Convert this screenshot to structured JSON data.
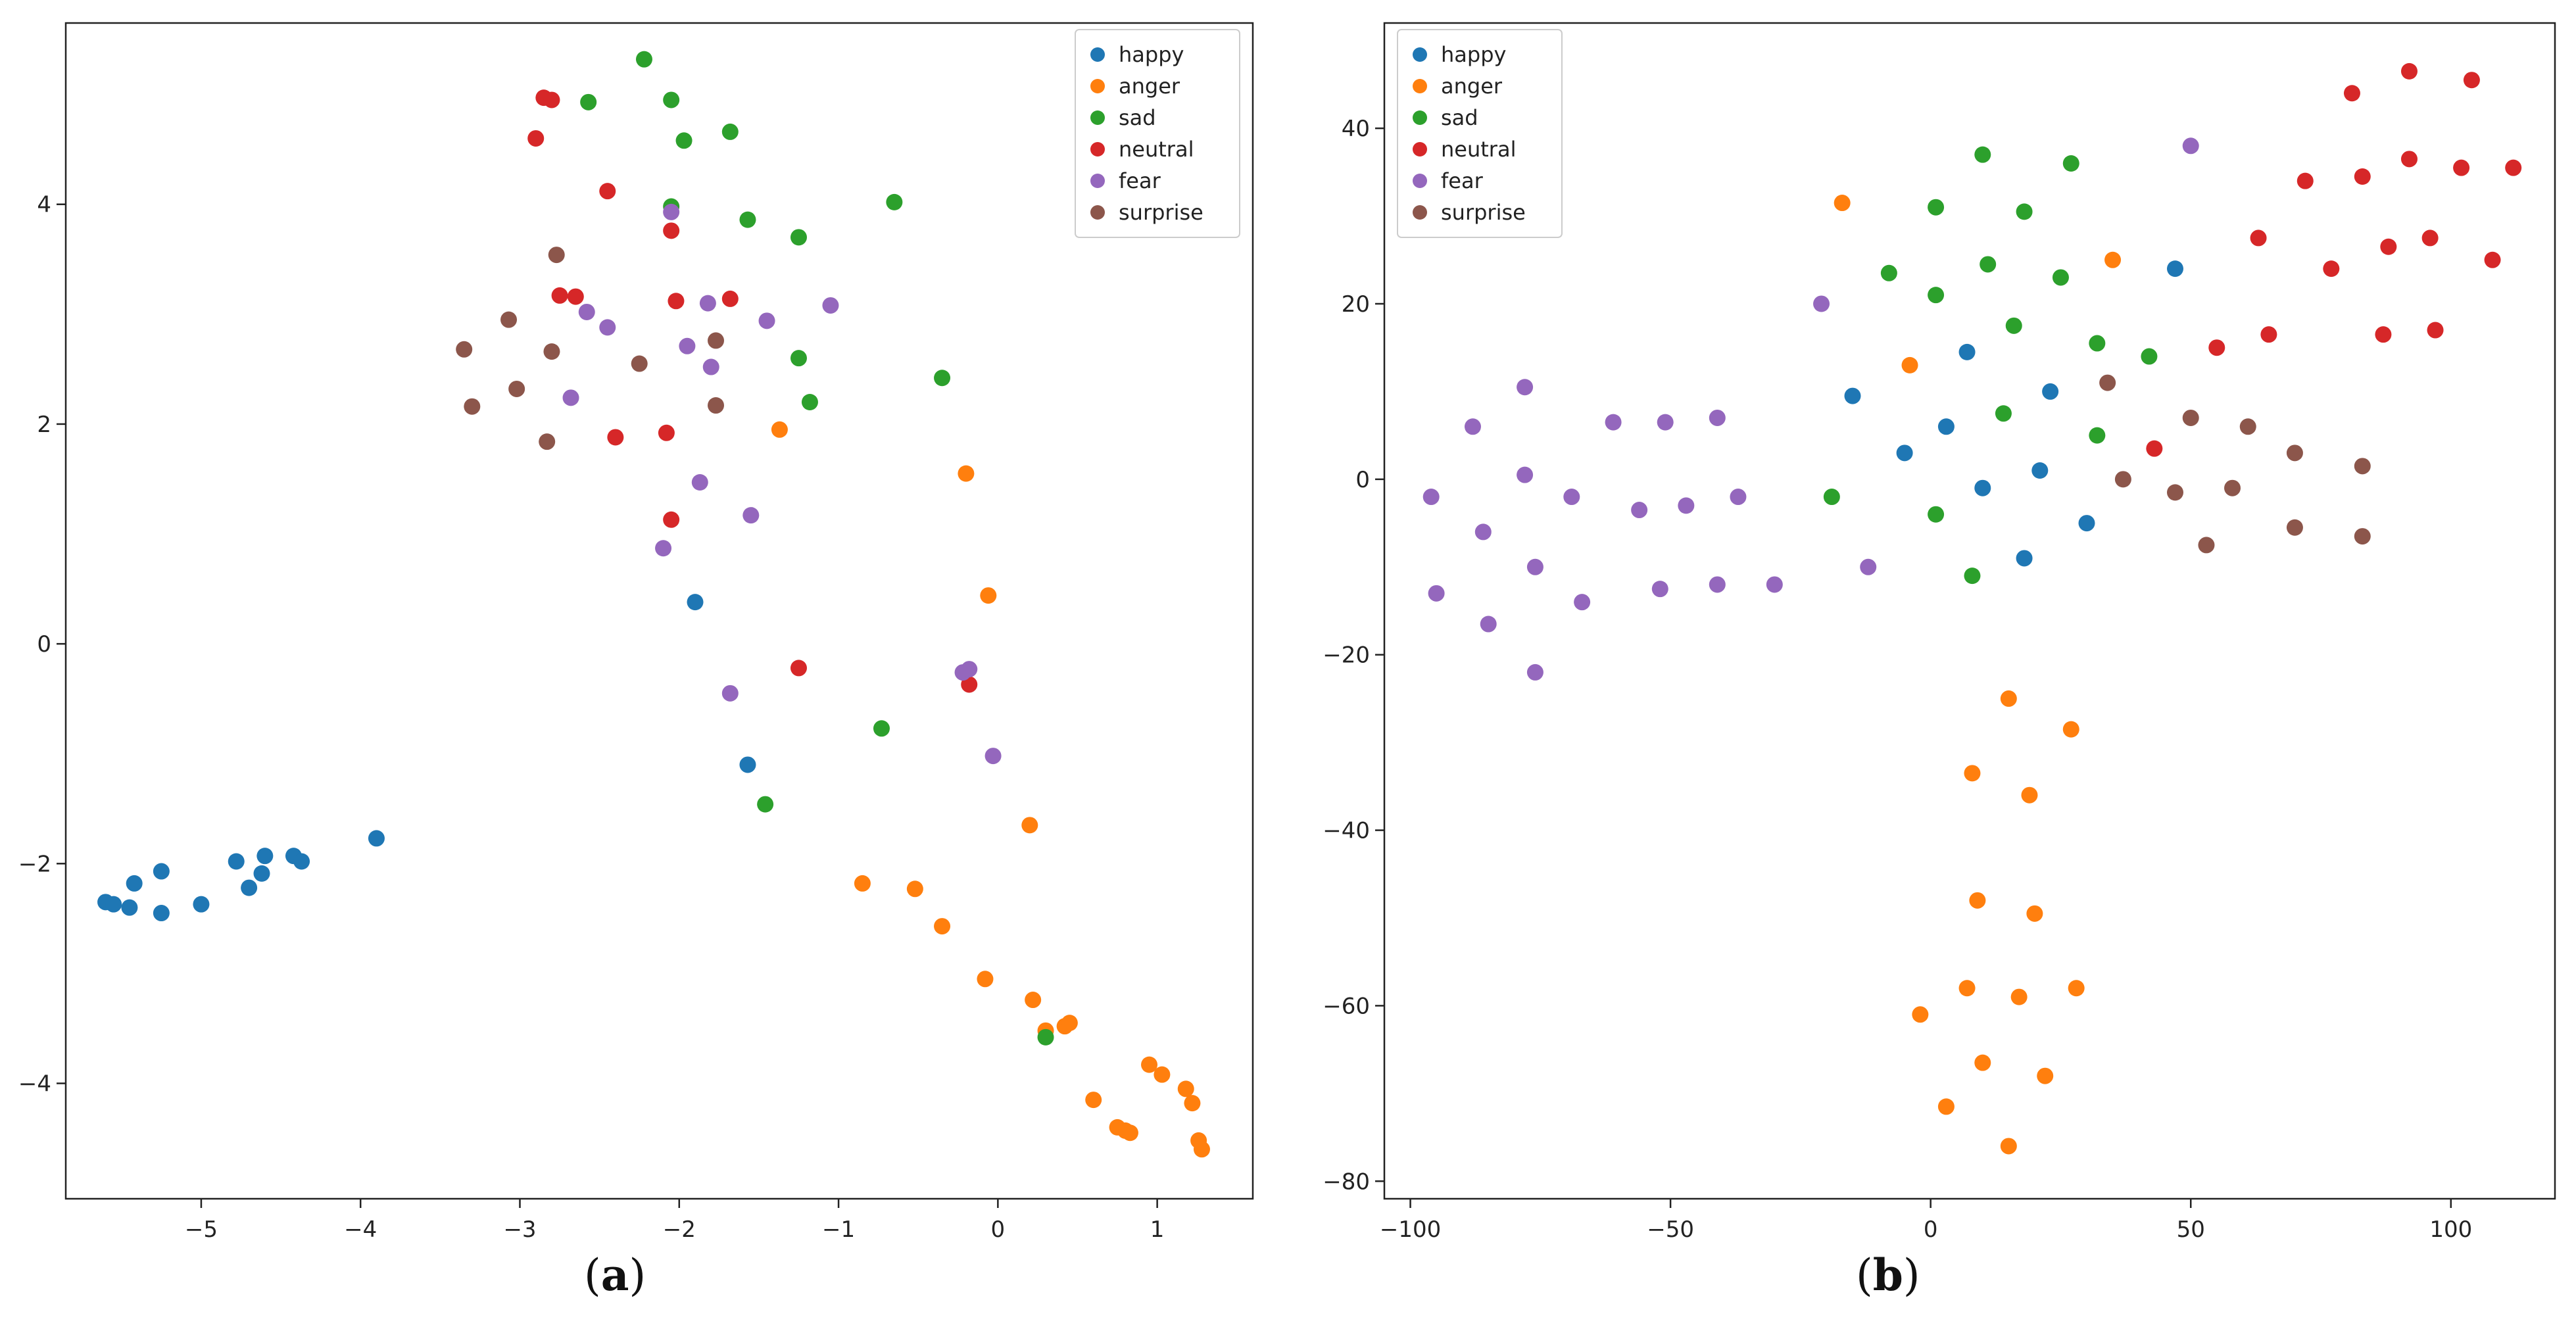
{
  "charts": [
    {
      "panel_label": "a",
      "legend_placement": "top-right",
      "x_ticks": [
        "−5",
        "−4",
        "−3",
        "−2",
        "−1",
        "0",
        "1"
      ],
      "y_ticks": [
        "−4",
        "−2",
        "0",
        "2",
        "4"
      ]
    },
    {
      "panel_label": "b",
      "legend_placement": "top-left",
      "x_ticks": [
        "−100",
        "−50",
        "0",
        "50",
        "100"
      ],
      "y_ticks": [
        "−80",
        "−60",
        "−40",
        "−20",
        "0",
        "20",
        "40"
      ]
    }
  ],
  "chart_data": [
    {
      "type": "scatter",
      "title": "",
      "xlabel": "",
      "ylabel": "",
      "xlim": [
        -5.85,
        1.6
      ],
      "ylim": [
        -5.05,
        5.65
      ],
      "xticks": [
        -5,
        -4,
        -3,
        -2,
        -1,
        0,
        1
      ],
      "yticks": [
        -4,
        -2,
        0,
        2,
        4
      ],
      "grid": false,
      "series": [
        {
          "name": "happy",
          "color": "#1f77b4",
          "points": [
            [
              -5.6,
              -2.35
            ],
            [
              -5.55,
              -2.37
            ],
            [
              -5.45,
              -2.4
            ],
            [
              -5.42,
              -2.18
            ],
            [
              -5.25,
              -2.07
            ],
            [
              -5.25,
              -2.45
            ],
            [
              -5.0,
              -2.37
            ],
            [
              -4.78,
              -1.98
            ],
            [
              -4.7,
              -2.22
            ],
            [
              -4.62,
              -2.09
            ],
            [
              -4.6,
              -1.93
            ],
            [
              -4.42,
              -1.93
            ],
            [
              -4.37,
              -1.98
            ],
            [
              -3.9,
              -1.77
            ],
            [
              -1.9,
              0.38
            ],
            [
              -1.57,
              -1.1
            ]
          ]
        },
        {
          "name": "anger",
          "color": "#ff7f0e",
          "points": [
            [
              -1.37,
              1.95
            ],
            [
              -0.2,
              1.55
            ],
            [
              -0.06,
              0.44
            ],
            [
              -0.85,
              -2.18
            ],
            [
              -0.52,
              -2.23
            ],
            [
              -0.35,
              -2.57
            ],
            [
              0.2,
              -1.65
            ],
            [
              -0.08,
              -3.05
            ],
            [
              0.22,
              -3.24
            ],
            [
              0.3,
              -3.52
            ],
            [
              0.42,
              -3.48
            ],
            [
              0.45,
              -3.45
            ],
            [
              0.6,
              -4.15
            ],
            [
              0.75,
              -4.4
            ],
            [
              0.8,
              -4.43
            ],
            [
              0.83,
              -4.45
            ],
            [
              0.95,
              -3.83
            ],
            [
              1.03,
              -3.92
            ],
            [
              1.18,
              -4.05
            ],
            [
              1.22,
              -4.18
            ],
            [
              1.26,
              -4.52
            ],
            [
              1.28,
              -4.6
            ]
          ]
        },
        {
          "name": "sad",
          "color": "#2ca02c",
          "points": [
            [
              -2.22,
              5.32
            ],
            [
              -2.05,
              4.95
            ],
            [
              -2.57,
              4.93
            ],
            [
              -1.68,
              4.66
            ],
            [
              -1.97,
              4.58
            ],
            [
              -2.05,
              3.98
            ],
            [
              -0.65,
              4.02
            ],
            [
              -1.57,
              3.86
            ],
            [
              -1.25,
              3.7
            ],
            [
              -1.25,
              2.6
            ],
            [
              -1.18,
              2.2
            ],
            [
              -0.35,
              2.42
            ],
            [
              -0.73,
              -0.77
            ],
            [
              -1.46,
              -1.46
            ],
            [
              0.3,
              -3.58
            ]
          ]
        },
        {
          "name": "neutral",
          "color": "#d62728",
          "points": [
            [
              -2.85,
              4.97
            ],
            [
              -2.8,
              4.95
            ],
            [
              -2.9,
              4.6
            ],
            [
              -2.45,
              4.12
            ],
            [
              -2.05,
              3.76
            ],
            [
              -2.75,
              3.17
            ],
            [
              -2.65,
              3.16
            ],
            [
              -2.02,
              3.12
            ],
            [
              -1.68,
              3.14
            ],
            [
              -2.4,
              1.88
            ],
            [
              -2.08,
              1.92
            ],
            [
              -2.05,
              1.13
            ],
            [
              -1.25,
              -0.22
            ],
            [
              -0.18,
              -0.37
            ]
          ]
        },
        {
          "name": "fear",
          "color": "#9467bd",
          "points": [
            [
              -2.05,
              3.93
            ],
            [
              -1.82,
              3.1
            ],
            [
              -1.05,
              3.08
            ],
            [
              -2.58,
              3.02
            ],
            [
              -1.45,
              2.94
            ],
            [
              -2.45,
              2.88
            ],
            [
              -1.95,
              2.71
            ],
            [
              -1.8,
              2.52
            ],
            [
              -2.68,
              2.24
            ],
            [
              -1.87,
              1.47
            ],
            [
              -1.55,
              1.17
            ],
            [
              -2.1,
              0.87
            ],
            [
              -1.68,
              -0.45
            ],
            [
              -0.22,
              -0.26
            ],
            [
              -0.18,
              -0.23
            ],
            [
              -0.03,
              -1.02
            ]
          ]
        },
        {
          "name": "surprise",
          "color": "#8c564b",
          "points": [
            [
              -2.77,
              3.54
            ],
            [
              -3.35,
              2.68
            ],
            [
              -3.07,
              2.95
            ],
            [
              -2.8,
              2.66
            ],
            [
              -1.77,
              2.76
            ],
            [
              -2.25,
              2.55
            ],
            [
              -3.02,
              2.32
            ],
            [
              -3.3,
              2.16
            ],
            [
              -1.77,
              2.17
            ],
            [
              -2.83,
              1.84
            ]
          ]
        }
      ]
    },
    {
      "type": "scatter",
      "title": "",
      "xlabel": "",
      "ylabel": "",
      "xlim": [
        -105,
        120
      ],
      "ylim": [
        -82,
        52
      ],
      "xticks": [
        -100,
        -50,
        0,
        50,
        100
      ],
      "yticks": [
        -80,
        -60,
        -40,
        -20,
        0,
        20,
        40
      ],
      "grid": false,
      "series": [
        {
          "name": "happy",
          "color": "#1f77b4",
          "points": [
            [
              -15,
              9.5
            ],
            [
              7,
              14.5
            ],
            [
              23,
              10
            ],
            [
              47,
              24
            ],
            [
              -5,
              3
            ],
            [
              3,
              6
            ],
            [
              10,
              -1
            ],
            [
              21,
              1
            ],
            [
              30,
              -5
            ],
            [
              18,
              -9
            ]
          ]
        },
        {
          "name": "anger",
          "color": "#ff7f0e",
          "points": [
            [
              -17,
              31.5
            ],
            [
              -4,
              13
            ],
            [
              35,
              25
            ],
            [
              15,
              -25
            ],
            [
              27,
              -28.5
            ],
            [
              8,
              -33.5
            ],
            [
              19,
              -36
            ],
            [
              9,
              -48
            ],
            [
              20,
              -49.5
            ],
            [
              -2,
              -61
            ],
            [
              7,
              -58
            ],
            [
              17,
              -59
            ],
            [
              28,
              -58
            ],
            [
              10,
              -66.5
            ],
            [
              3,
              -71.5
            ],
            [
              22,
              -68
            ],
            [
              15,
              -76
            ]
          ]
        },
        {
          "name": "sad",
          "color": "#2ca02c",
          "points": [
            [
              10,
              37
            ],
            [
              27,
              36
            ],
            [
              1,
              31
            ],
            [
              18,
              30.5
            ],
            [
              -8,
              23.5
            ],
            [
              11,
              24.5
            ],
            [
              25,
              23
            ],
            [
              1,
              21
            ],
            [
              16,
              17.5
            ],
            [
              32,
              15.5
            ],
            [
              42,
              14
            ],
            [
              14,
              7.5
            ],
            [
              32,
              5
            ],
            [
              -19,
              -2
            ],
            [
              1,
              -4
            ],
            [
              8,
              -11
            ]
          ]
        },
        {
          "name": "neutral",
          "color": "#d62728",
          "points": [
            [
              81,
              44
            ],
            [
              92,
              46.5
            ],
            [
              104,
              45.5
            ],
            [
              72,
              34
            ],
            [
              83,
              34.5
            ],
            [
              92,
              36.5
            ],
            [
              102,
              35.5
            ],
            [
              112,
              35.5
            ],
            [
              63,
              27.5
            ],
            [
              88,
              26.5
            ],
            [
              96,
              27.5
            ],
            [
              77,
              24
            ],
            [
              108,
              25
            ],
            [
              55,
              15
            ],
            [
              65,
              16.5
            ],
            [
              87,
              16.5
            ],
            [
              97,
              17
            ],
            [
              43,
              3.5
            ]
          ]
        },
        {
          "name": "fear",
          "color": "#9467bd",
          "points": [
            [
              50,
              38
            ],
            [
              -21,
              20
            ],
            [
              -78,
              10.5
            ],
            [
              -88,
              6
            ],
            [
              -61,
              6.5
            ],
            [
              -51,
              6.5
            ],
            [
              -41,
              7
            ],
            [
              -78,
              0.5
            ],
            [
              -96,
              -2
            ],
            [
              -69,
              -2
            ],
            [
              -37,
              -2
            ],
            [
              -56,
              -3.5
            ],
            [
              -47,
              -3
            ],
            [
              -86,
              -6
            ],
            [
              -76,
              -10
            ],
            [
              -12,
              -10
            ],
            [
              -95,
              -13
            ],
            [
              -67,
              -14
            ],
            [
              -52,
              -12.5
            ],
            [
              -41,
              -12
            ],
            [
              -30,
              -12
            ],
            [
              -85,
              -16.5
            ],
            [
              -76,
              -22
            ]
          ]
        },
        {
          "name": "surprise",
          "color": "#8c564b",
          "points": [
            [
              34,
              11
            ],
            [
              50,
              7
            ],
            [
              61,
              6
            ],
            [
              37,
              0
            ],
            [
              47,
              -1.5
            ],
            [
              58,
              -1
            ],
            [
              70,
              3
            ],
            [
              83,
              1.5
            ],
            [
              53,
              -7.5
            ],
            [
              70,
              -5.5
            ],
            [
              83,
              -6.5
            ]
          ]
        }
      ]
    }
  ]
}
